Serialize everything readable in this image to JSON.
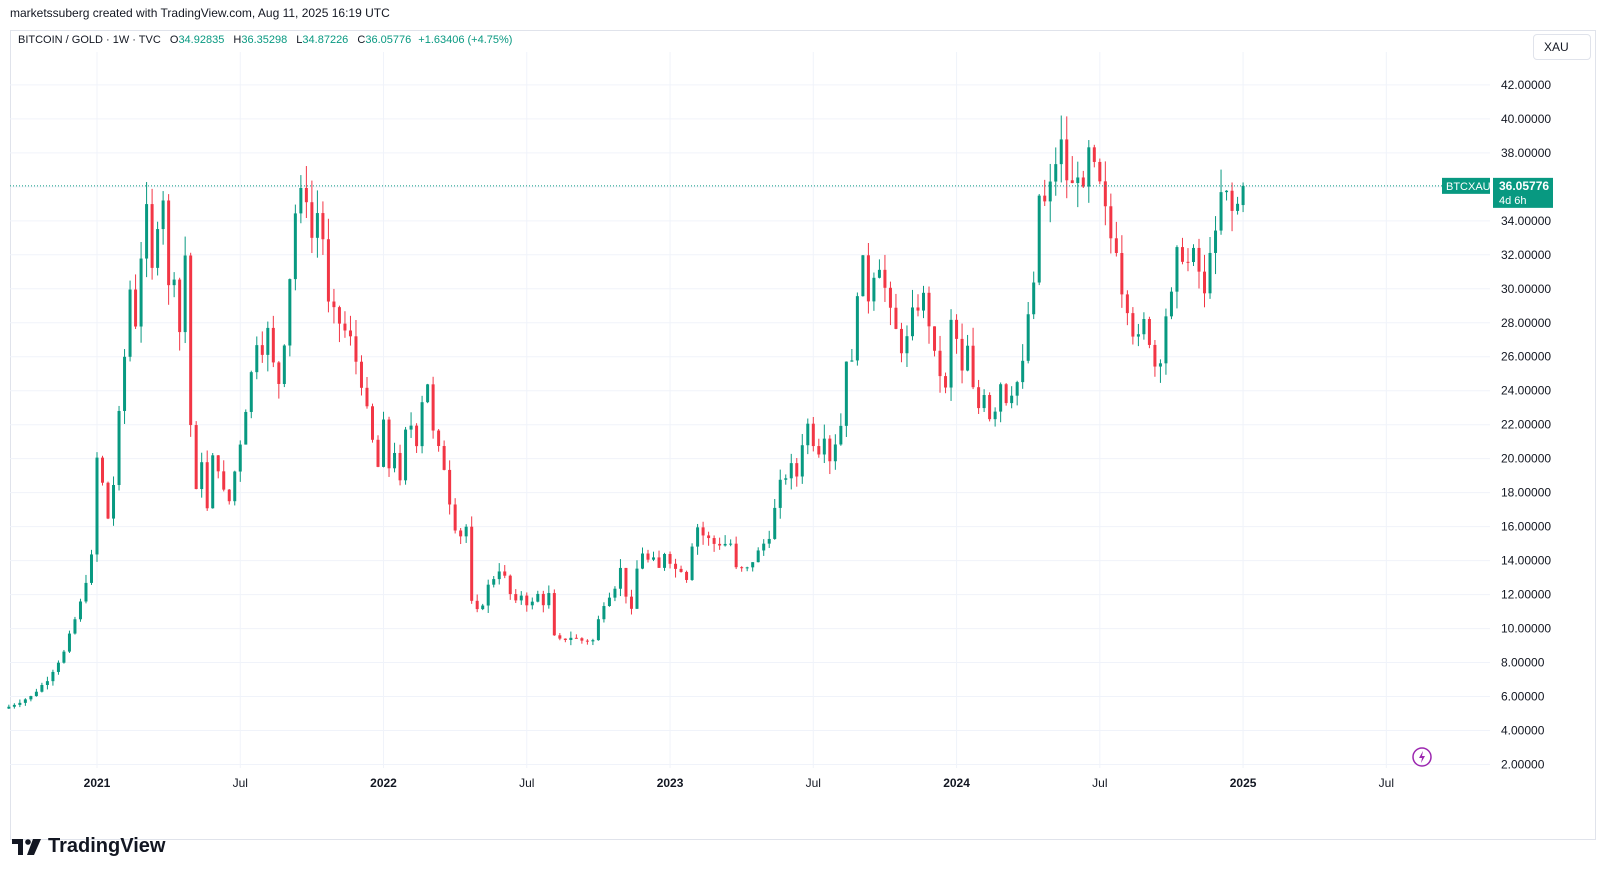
{
  "caption": "marketssuberg created with TradingView.com, Aug 11, 2025 16:19 UTC",
  "legend": {
    "symbol": "BITCOIN / GOLD · 1W · TVC",
    "o_label": "O",
    "o": "34.92835",
    "h_label": "H",
    "h": "36.35298",
    "l_label": "L",
    "l": "34.87226",
    "c_label": "C",
    "c": "36.05776",
    "change": "+1.63406 (+4.75%)"
  },
  "symbol_box": "XAU",
  "price_tag": {
    "ticker": "BTCXAU",
    "price": "36.05776",
    "countdown": "4d 6h"
  },
  "brand": "TradingView",
  "colors": {
    "up": "#089981",
    "down": "#f23645",
    "grid": "#f0f3fa",
    "text": "#131722"
  },
  "chart_data": {
    "type": "candlestick",
    "interval": "1W",
    "y_ticks": [
      "42.00000",
      "40.00000",
      "38.00000",
      "36.00000",
      "34.00000",
      "32.00000",
      "30.00000",
      "28.00000",
      "26.00000",
      "24.00000",
      "22.00000",
      "20.00000",
      "18.00000",
      "16.00000",
      "14.00000",
      "12.00000",
      "10.00000",
      "8.00000",
      "6.00000",
      "4.00000",
      "2.00000"
    ],
    "x_ticks": [
      {
        "label": "2021",
        "t": 0,
        "bold": true
      },
      {
        "label": "Jul",
        "t": 26,
        "bold": false
      },
      {
        "label": "2022",
        "t": 52,
        "bold": true
      },
      {
        "label": "Jul",
        "t": 78,
        "bold": false
      },
      {
        "label": "2023",
        "t": 104,
        "bold": true
      },
      {
        "label": "Jul",
        "t": 130,
        "bold": false
      },
      {
        "label": "2024",
        "t": 156,
        "bold": true
      },
      {
        "label": "Jul",
        "t": 182,
        "bold": false
      },
      {
        "label": "2025",
        "t": 208,
        "bold": true
      },
      {
        "label": "Jul",
        "t": 234,
        "bold": false
      }
    ],
    "last_price": 36.05776,
    "anchors": [
      [
        -16,
        5.4
      ],
      [
        -12,
        6.0
      ],
      [
        -9,
        7.0
      ],
      [
        -6,
        8.6
      ],
      [
        -3,
        11.5
      ],
      [
        -1,
        14.2
      ],
      [
        0,
        20.0
      ],
      [
        1,
        18.5
      ],
      [
        2,
        16.5
      ],
      [
        3,
        18.5
      ],
      [
        4,
        22.5
      ],
      [
        5,
        26.0
      ],
      [
        6,
        30.0
      ],
      [
        7,
        28.0
      ],
      [
        8,
        32.0
      ],
      [
        9,
        34.5
      ],
      [
        10,
        31.0
      ],
      [
        11,
        34.0
      ],
      [
        12,
        35.5
      ],
      [
        13,
        30.0
      ],
      [
        14,
        31.0
      ],
      [
        15,
        27.5
      ],
      [
        16,
        32.0
      ],
      [
        17,
        22.0
      ],
      [
        18,
        18.0
      ],
      [
        19,
        20.0
      ],
      [
        20,
        17.0
      ],
      [
        21,
        20.0
      ],
      [
        22,
        19.5
      ],
      [
        23,
        18.0
      ],
      [
        24,
        17.5
      ],
      [
        26,
        21.0
      ],
      [
        28,
        25.0
      ],
      [
        29,
        27.0
      ],
      [
        30,
        26.5
      ],
      [
        31,
        27.5
      ],
      [
        32,
        25.5
      ],
      [
        33,
        24.5
      ],
      [
        34,
        27.0
      ],
      [
        36,
        34.5
      ],
      [
        37,
        35.5
      ],
      [
        38,
        35.5
      ],
      [
        39,
        33.0
      ],
      [
        40,
        34.5
      ],
      [
        41,
        33.0
      ],
      [
        42,
        29.0
      ],
      [
        44,
        28.0
      ],
      [
        46,
        27.0
      ],
      [
        48,
        24.5
      ],
      [
        50,
        21.0
      ],
      [
        51,
        19.5
      ],
      [
        52,
        22.0
      ],
      [
        53,
        19.5
      ],
      [
        54,
        20.5
      ],
      [
        55,
        18.5
      ],
      [
        56,
        21.5
      ],
      [
        57,
        22.0
      ],
      [
        58,
        21.0
      ],
      [
        59,
        23.5
      ],
      [
        60,
        24.5
      ],
      [
        61,
        21.5
      ],
      [
        62,
        20.5
      ],
      [
        63,
        19.5
      ],
      [
        64,
        17.5
      ],
      [
        65,
        16.0
      ],
      [
        66,
        15.5
      ],
      [
        67,
        16.0
      ],
      [
        68,
        11.5
      ],
      [
        69,
        11.0
      ],
      [
        70,
        11.5
      ],
      [
        71,
        12.5
      ],
      [
        72,
        13.0
      ],
      [
        73,
        13.5
      ],
      [
        74,
        13.0
      ],
      [
        75,
        12.0
      ],
      [
        76,
        11.5
      ],
      [
        77,
        12.0
      ],
      [
        78,
        11.5
      ],
      [
        79,
        11.5
      ],
      [
        80,
        12.0
      ],
      [
        81,
        11.5
      ],
      [
        82,
        12.0
      ],
      [
        83,
        9.5
      ],
      [
        84,
        9.3
      ],
      [
        86,
        9.5
      ],
      [
        88,
        9.3
      ],
      [
        90,
        9.3
      ],
      [
        91,
        10.5
      ],
      [
        92,
        11.5
      ],
      [
        93,
        12.0
      ],
      [
        94,
        12.5
      ],
      [
        95,
        13.5
      ],
      [
        96,
        12.0
      ],
      [
        97,
        11.0
      ],
      [
        98,
        13.5
      ],
      [
        99,
        14.5
      ],
      [
        100,
        14.0
      ],
      [
        101,
        14.0
      ],
      [
        102,
        13.5
      ],
      [
        103,
        14.5
      ],
      [
        104,
        14.0
      ],
      [
        105,
        13.5
      ],
      [
        106,
        13.5
      ],
      [
        107,
        13.0
      ],
      [
        108,
        15.0
      ],
      [
        109,
        16.0
      ],
      [
        110,
        15.5
      ],
      [
        112,
        15.0
      ],
      [
        114,
        15.0
      ],
      [
        115,
        15.0
      ],
      [
        116,
        13.5
      ],
      [
        117,
        13.5
      ],
      [
        118,
        13.5
      ],
      [
        119,
        14.0
      ],
      [
        120,
        14.5
      ],
      [
        121,
        15.0
      ],
      [
        122,
        15.5
      ],
      [
        123,
        17.0
      ],
      [
        124,
        18.5
      ],
      [
        125,
        19.0
      ],
      [
        126,
        19.5
      ],
      [
        127,
        19.0
      ],
      [
        128,
        21.0
      ],
      [
        129,
        22.0
      ],
      [
        130,
        21.0
      ],
      [
        131,
        20.5
      ],
      [
        132,
        21.5
      ],
      [
        133,
        20.0
      ],
      [
        134,
        21.0
      ],
      [
        135,
        22.0
      ],
      [
        136,
        26.0
      ],
      [
        137,
        25.5
      ],
      [
        138,
        30.0
      ],
      [
        139,
        31.5
      ],
      [
        140,
        29.5
      ],
      [
        141,
        31.0
      ],
      [
        142,
        31.5
      ],
      [
        143,
        30.0
      ],
      [
        144,
        28.5
      ],
      [
        145,
        27.5
      ],
      [
        146,
        26.5
      ],
      [
        147,
        27.0
      ],
      [
        148,
        28.5
      ],
      [
        149,
        29.0
      ],
      [
        150,
        29.5
      ],
      [
        151,
        28.0
      ],
      [
        152,
        26.0
      ],
      [
        153,
        25.0
      ],
      [
        154,
        24.0
      ],
      [
        155,
        28.0
      ],
      [
        156,
        27.0
      ],
      [
        157,
        25.0
      ],
      [
        158,
        26.5
      ],
      [
        159,
        24.0
      ],
      [
        160,
        23.0
      ],
      [
        161,
        24.0
      ],
      [
        162,
        22.5
      ],
      [
        163,
        23.0
      ],
      [
        164,
        24.5
      ],
      [
        165,
        23.5
      ],
      [
        166,
        24.0
      ],
      [
        167,
        24.5
      ],
      [
        168,
        25.5
      ],
      [
        169,
        28.5
      ],
      [
        170,
        30.0
      ],
      [
        171,
        35.5
      ],
      [
        172,
        35.0
      ],
      [
        173,
        36.0
      ],
      [
        174,
        37.5
      ],
      [
        175,
        38.5
      ],
      [
        176,
        36.5
      ],
      [
        177,
        36.0
      ],
      [
        178,
        37.0
      ],
      [
        179,
        35.5
      ],
      [
        180,
        38.0
      ],
      [
        181,
        37.0
      ],
      [
        182,
        36.0
      ],
      [
        183,
        34.5
      ],
      [
        184,
        33.0
      ],
      [
        185,
        32.5
      ],
      [
        186,
        30.0
      ],
      [
        187,
        29.0
      ],
      [
        188,
        27.5
      ],
      [
        189,
        27.0
      ],
      [
        190,
        28.0
      ],
      [
        191,
        27.0
      ],
      [
        192,
        25.5
      ],
      [
        193,
        26.0
      ],
      [
        194,
        28.5
      ],
      [
        195,
        29.5
      ],
      [
        196,
        32.0
      ],
      [
        197,
        32.0
      ],
      [
        198,
        31.5
      ],
      [
        199,
        32.0
      ],
      [
        200,
        31.0
      ],
      [
        201,
        29.5
      ],
      [
        202,
        32.5
      ],
      [
        203,
        33.0
      ],
      [
        204,
        35.5
      ],
      [
        205,
        35.5
      ],
      [
        206,
        34.5
      ],
      [
        207,
        34.92835
      ],
      [
        208,
        36.05776
      ]
    ],
    "x_range_weeks": [
      -18,
      222
    ],
    "ylim": [
      2,
      42
    ]
  }
}
